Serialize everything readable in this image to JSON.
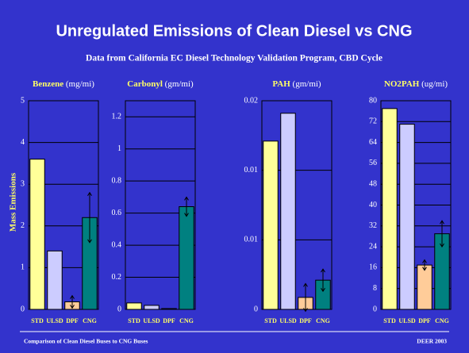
{
  "slide": {
    "title": "Unregulated Emissions of Clean Diesel vs CNG",
    "subtitle": "Data from California EC Diesel Technology Validation Program, CBD Cycle",
    "y_label": "Mass Emissions",
    "footer_left": "Comparison of Clean Diesel Buses to CNG Buses",
    "footer_right": "DEER 2003"
  },
  "chart_data": [
    {
      "type": "bar",
      "title": "Benzene",
      "unit": "(mg/mi)",
      "categories": [
        "STD",
        "ULSD",
        "DPF",
        "CNG"
      ],
      "colors": [
        "#ffff99",
        "#ccccff",
        "#ffcc99",
        "#008080"
      ],
      "values": [
        3.6,
        1.4,
        0.18,
        2.2
      ],
      "errors": [
        null,
        null,
        0.15,
        0.6
      ],
      "ylim": [
        0,
        5
      ],
      "yticks": [
        0,
        1,
        2,
        3,
        4,
        5
      ],
      "grid": true
    },
    {
      "type": "bar",
      "title": "Carbonyl",
      "unit": "(gm/mi)",
      "categories": [
        "STD",
        "ULSD",
        "DPF",
        "CNG"
      ],
      "colors": [
        "#ffff99",
        "#ccccff",
        "#ffcc99",
        "#008080"
      ],
      "values": [
        0.04,
        0.025,
        0.005,
        0.64
      ],
      "errors": [
        null,
        null,
        null,
        0.06
      ],
      "ylim": [
        0,
        1.3
      ],
      "yticks": [
        0,
        0.2,
        0.4,
        0.6,
        0.8,
        1,
        1.2
      ],
      "grid": true
    },
    {
      "type": "bar",
      "title": "PAH",
      "unit": "(gm/mi)",
      "categories": [
        "STD",
        "ULSD",
        "DPF",
        "CNG"
      ],
      "colors": [
        "#ffff99",
        "#ccccff",
        "#ffcc99",
        "#008080"
      ],
      "values": [
        0.0121,
        0.0141,
        0.00086,
        0.0021
      ],
      "errors": [
        null,
        null,
        0.001,
        0.0008
      ],
      "ylim": [
        0,
        0.015
      ],
      "yticks": [
        0,
        {
          "value": 0.005,
          "label": "0.01"
        },
        {
          "value": 0.01,
          "label": "0.01"
        },
        {
          "value": 0.015,
          "label": "0.02"
        }
      ],
      "grid": true
    },
    {
      "type": "bar",
      "title": "NO2PAH",
      "unit": "(ug/mi)",
      "categories": [
        "STD",
        "ULSD",
        "DPF",
        "CNG"
      ],
      "colors": [
        "#ffff99",
        "#ccccff",
        "#ffcc99",
        "#008080"
      ],
      "values": [
        77,
        71,
        17,
        29
      ],
      "errors": [
        null,
        null,
        2,
        5
      ],
      "ylim": [
        0,
        80
      ],
      "yticks": [
        0,
        8,
        16,
        24,
        32,
        40,
        48,
        56,
        64,
        72,
        80
      ],
      "grid": true
    }
  ]
}
